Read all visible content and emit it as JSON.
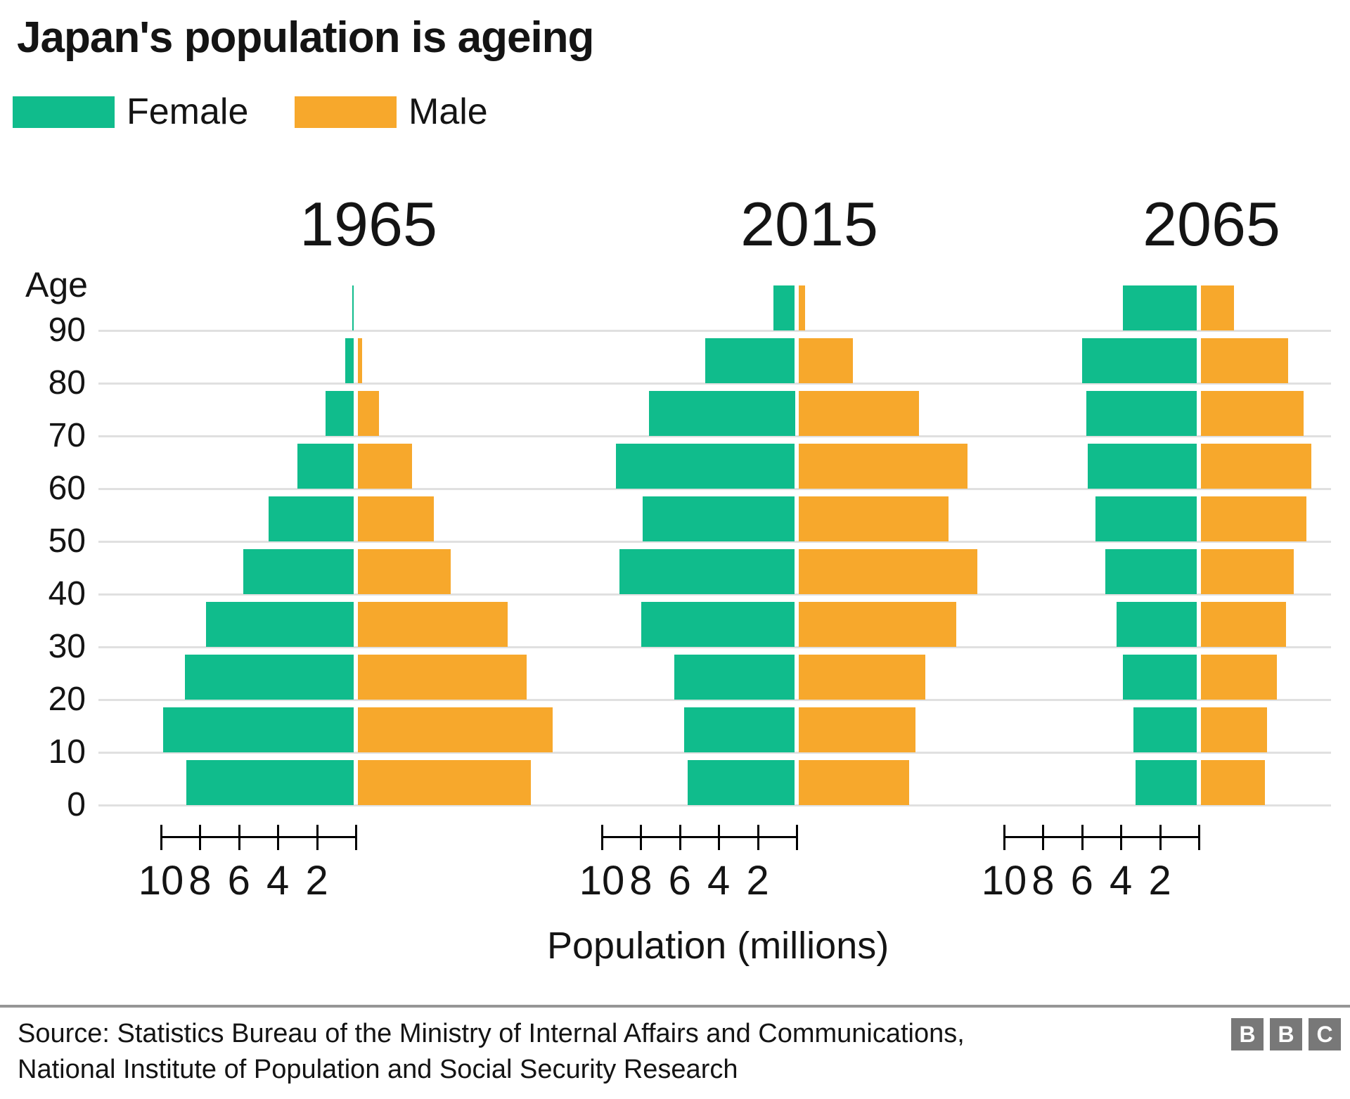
{
  "title": "Japan's population is ageing",
  "legend": {
    "female_label": "Female",
    "male_label": "Male"
  },
  "age_axis_title": "Age",
  "chart_data": {
    "type": "bar",
    "variant": "population-pyramid",
    "unit": "millions of people",
    "grid": "horizontal-on",
    "age_groups": [
      "0-9",
      "10-19",
      "20-29",
      "30-39",
      "40-49",
      "50-59",
      "60-69",
      "70-79",
      "80-89",
      "90+"
    ],
    "y_axis": {
      "label": "Age",
      "tick_labels": [
        "90",
        "80",
        "70",
        "60",
        "50",
        "40",
        "30",
        "20",
        "10",
        "0"
      ]
    },
    "x_axis": {
      "label": "Population (millions)",
      "tick_labels": [
        "10",
        "8",
        "6",
        "4",
        "2"
      ],
      "max_per_side": 10
    },
    "series_colors": {
      "female": "#10BC8C",
      "male": "#F7A82C"
    },
    "pyramids": [
      {
        "year": "1965",
        "female": [
          8.6,
          9.8,
          8.7,
          7.6,
          5.7,
          4.4,
          2.9,
          1.45,
          0.45,
          0.1
        ],
        "male": [
          8.9,
          10.0,
          8.7,
          7.7,
          4.8,
          3.9,
          2.8,
          1.1,
          0.25,
          0
        ]
      },
      {
        "year": "2015",
        "female": [
          5.5,
          5.7,
          6.2,
          7.9,
          9.0,
          7.8,
          9.2,
          7.5,
          4.6,
          1.1
        ],
        "male": [
          5.7,
          6.0,
          6.5,
          8.1,
          9.2,
          7.7,
          8.7,
          6.2,
          2.8,
          0.35
        ]
      },
      {
        "year": "2065",
        "female": [
          3.15,
          3.25,
          3.8,
          4.15,
          4.7,
          5.2,
          5.6,
          5.7,
          5.9,
          3.8
        ],
        "male": [
          3.3,
          3.4,
          3.9,
          4.4,
          4.8,
          5.45,
          5.7,
          5.3,
          4.5,
          1.7
        ]
      }
    ]
  },
  "footer": {
    "source_line1": "Source: Statistics Bureau of the Ministry of Internal Affairs and Communications,",
    "source_line2": "National Institute of Population and Social Security Research",
    "logo_letters": [
      "B",
      "B",
      "C"
    ]
  }
}
